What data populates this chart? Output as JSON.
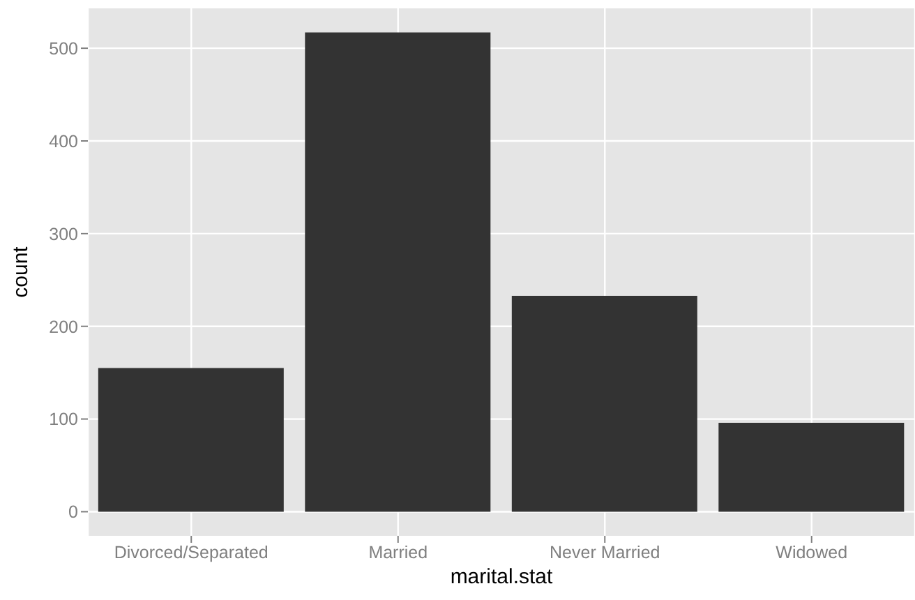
{
  "chart_data": {
    "type": "bar",
    "xlabel": "marital.stat",
    "ylabel": "count",
    "categories": [
      "Divorced/Separated",
      "Married",
      "Never Married",
      "Widowed"
    ],
    "values": [
      155,
      517,
      233,
      96
    ],
    "color": "#333333",
    "ylim": [
      -26,
      543
    ],
    "yticks": [
      0,
      100,
      200,
      300,
      400,
      500
    ],
    "grid": true
  }
}
